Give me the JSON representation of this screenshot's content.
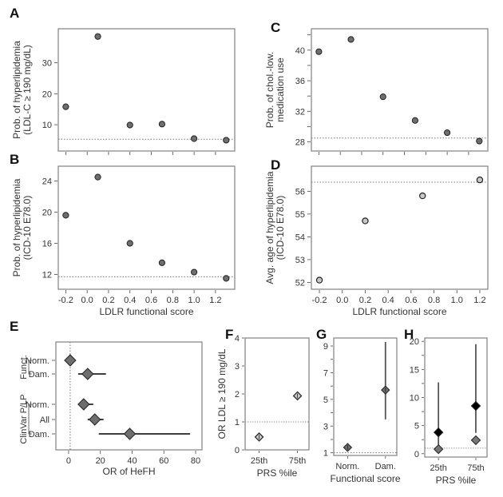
{
  "chart_data": [
    {
      "panel": "A",
      "type": "scatter",
      "xlabel": "",
      "ylabel": [
        "Prob. of hyperlipidemia",
        "(LDL-C ≥ 190 mg/dL)"
      ],
      "x_ticks": [
        -0.2,
        0.0,
        0.2,
        0.4,
        0.6,
        0.8,
        1.0,
        1.2
      ],
      "x_tick_labels_shown": false,
      "y_ticks": [
        10,
        20,
        30
      ],
      "xlim": [
        -0.27,
        1.38
      ],
      "ylim": [
        1.5,
        41
      ],
      "x": [
        -0.2,
        0.1,
        0.4,
        0.7,
        1.0,
        1.3
      ],
      "y": [
        15.8,
        38.5,
        9.9,
        10.2,
        5.5,
        5.0
      ],
      "reference_line": 5.3,
      "grid": false
    },
    {
      "panel": "B",
      "type": "scatter",
      "xlabel": "LDLR functional score",
      "ylabel": [
        "Prob. of hyperlipidemia",
        "(ICD-10 E78.0)"
      ],
      "x_ticks": [
        -0.2,
        0.0,
        0.2,
        0.4,
        0.6,
        0.8,
        1.0,
        1.2
      ],
      "x_tick_labels": [
        "-0.2",
        "0.0",
        "0.2",
        "0.4",
        "0.6",
        "0.8",
        "1.0",
        "1.2"
      ],
      "y_ticks": [
        12,
        16,
        20,
        24
      ],
      "y_tick_labels": [
        "12",
        "16",
        "20",
        "24"
      ],
      "xlim": [
        -0.27,
        1.38
      ],
      "ylim": [
        10.1,
        25.9
      ],
      "x": [
        -0.2,
        0.1,
        0.4,
        0.7,
        1.0,
        1.3
      ],
      "y": [
        19.6,
        24.5,
        16.0,
        13.5,
        12.3,
        11.5
      ],
      "reference_line": 11.7,
      "grid": false
    },
    {
      "panel": "C",
      "type": "scatter",
      "xlabel": "",
      "ylabel": [
        "Prob. of chol.-low.",
        "medication use"
      ],
      "x_ticks": [
        -0.2,
        0.0,
        0.2,
        0.4,
        0.6,
        0.8,
        1.0,
        1.2
      ],
      "x_tick_labels_shown": false,
      "y_ticks": [
        28,
        30,
        32,
        34,
        36,
        38,
        40,
        42
      ],
      "y_tick_labels": [
        "28",
        "32",
        "36",
        "40"
      ],
      "xlim": [
        -0.27,
        1.38
      ],
      "ylim": [
        26.8,
        42.8
      ],
      "x": [
        -0.2,
        0.1,
        0.4,
        0.7,
        1.0,
        1.3
      ],
      "y": [
        39.8,
        41.4,
        33.9,
        30.8,
        29.2,
        28.1
      ],
      "reference_line": 28.5,
      "grid": false
    },
    {
      "panel": "D",
      "type": "scatter",
      "xlabel": "LDLR functional score",
      "ylabel": [
        "Avg. age of hyperlipidemia",
        "(ICD-10 E78.0)"
      ],
      "x_ticks": [
        -0.2,
        0.0,
        0.2,
        0.4,
        0.6,
        0.8,
        1.0,
        1.2
      ],
      "x_tick_labels": [
        "-0.2",
        "0.0",
        "0.2",
        "0.4",
        "0.6",
        "0.8",
        "1.0",
        "1.2"
      ],
      "y_ticks": [
        52,
        53,
        54,
        55,
        56
      ],
      "y_tick_labels": [
        "52",
        "53",
        "54",
        "55",
        "56"
      ],
      "xlim": [
        -0.27,
        1.27
      ],
      "ylim": [
        51.7,
        57.1
      ],
      "x": [
        -0.2,
        0.2,
        0.7,
        1.2
      ],
      "y": [
        52.1,
        54.7,
        55.8,
        56.5
      ],
      "reference_line": 56.4,
      "grid": false
    },
    {
      "panel": "E",
      "type": "forest",
      "xlabel": "OR of HeFH",
      "x_ticks": [
        0,
        20,
        40,
        60,
        80
      ],
      "x_tick_labels": [
        "0",
        "20",
        "40",
        "60",
        "80"
      ],
      "xlim": [
        -8,
        84
      ],
      "groups": [
        {
          "label": "Funct.",
          "rows": [
            "Norm.",
            "Dam."
          ]
        },
        {
          "label": "ClinVar P/LP",
          "rows": [
            "Norm.",
            "All",
            "Dam."
          ]
        }
      ],
      "rows": [
        {
          "group": "Funct.",
          "label": "Norm.",
          "or": 1.0,
          "ci": [
            1.0,
            1.0
          ]
        },
        {
          "group": "Funct.",
          "label": "Dam.",
          "or": 12.0,
          "ci": [
            6.0,
            23.5
          ]
        },
        {
          "group": "ClinVar P/LP",
          "label": "Norm.",
          "or": 9.5,
          "ci": [
            6.0,
            15.5
          ]
        },
        {
          "group": "ClinVar P/LP",
          "label": "All",
          "or": 16.5,
          "ci": [
            12.0,
            22.0
          ]
        },
        {
          "group": "ClinVar P/LP",
          "label": "Dam.",
          "or": 38.5,
          "ci": [
            19.0,
            76.5
          ]
        }
      ],
      "reference_line": 1.0,
      "grid": false
    },
    {
      "panel": "F",
      "type": "scatter",
      "xlabel": "PRS %ile",
      "ylabel": "OR LDL ≥ 190 mg/dL",
      "categories": [
        "25th",
        "75th"
      ],
      "y_ticks": [
        0,
        1,
        2,
        3,
        4
      ],
      "y_tick_labels": [
        "0",
        "1",
        "2",
        "3",
        "4"
      ],
      "ylim": [
        0,
        4
      ],
      "values": [
        0.46,
        1.93
      ],
      "reference_line": 1.0,
      "grid": false
    },
    {
      "panel": "G",
      "type": "scatter",
      "xlabel": "Functional score",
      "ylabel": "",
      "categories": [
        "Norm.",
        "Dam."
      ],
      "y_ticks": [
        1,
        2,
        3,
        4,
        5,
        6,
        7,
        8,
        9
      ],
      "y_tick_labels": [
        "1",
        "3",
        "5",
        "7",
        "9"
      ],
      "ylim": [
        0.8,
        9.6
      ],
      "values": [
        1.4,
        5.7
      ],
      "ci": [
        [
          1.4,
          1.4
        ],
        [
          3.5,
          9.3
        ]
      ],
      "reference_line": 1.0,
      "grid": false
    },
    {
      "panel": "H",
      "type": "scatter",
      "xlabel": "PRS %ile",
      "ylabel": "",
      "categories": [
        "25th",
        "75th"
      ],
      "y_ticks": [
        0,
        2.5,
        5,
        7.5,
        10,
        12.5,
        15,
        17.5,
        20
      ],
      "y_tick_labels": [
        "0",
        "5",
        "10",
        "15",
        "20"
      ],
      "ylim": [
        -0.6,
        20.6
      ],
      "series": [
        {
          "name": "black",
          "values": [
            3.8,
            8.5
          ],
          "ci": [
            [
              0.8,
              12.7
            ],
            [
              3.7,
              19.5
            ]
          ],
          "color": "#000000"
        },
        {
          "name": "grey",
          "values": [
            0.8,
            2.4
          ],
          "ci": [
            [
              0.8,
              0.8
            ],
            [
              2.4,
              2.4
            ]
          ],
          "color": "#777777"
        }
      ],
      "reference_line": 1.0,
      "grid": false
    }
  ],
  "panel_letters": [
    "A",
    "B",
    "C",
    "D",
    "E",
    "F",
    "G",
    "H"
  ]
}
